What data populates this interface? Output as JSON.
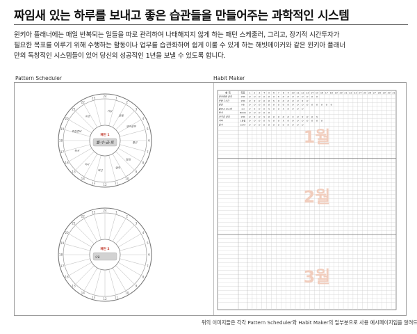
{
  "headline": "짜임새 있는 하루를 보내고 좋은 습관들을 만들어주는 과학적인 시스템",
  "description": [
    "윈키아 플래너에는 매일 반복되는 일들을 따로 관리하여 나태해지지 않게 하는 패턴 스케줄러, 그리고, 장기적 시간투자가",
    "필요한 목표를 이루기 위해 수행하는 활동이나 업무를 습관화하여 쉽게 이룰 수 있게 하는 해빗메이커와 같은 윈키아 플래너",
    "만의 독창적인 시스템들이 있어 당신의 성공적인 1년을 보낼 수 있도록 합니다."
  ],
  "pattern_scheduler": {
    "label": "Pattern Scheduler",
    "dial_numbers": [
      "24",
      "1",
      "2",
      "3",
      "4",
      "5",
      "6",
      "7",
      "8",
      "9",
      "10",
      "11",
      "12",
      "13",
      "14",
      "15",
      "16",
      "17",
      "18",
      "19",
      "20",
      "21",
      "22",
      "23"
    ],
    "pattern1": {
      "tag": "패턴 1",
      "box_text": "월·수·금·토",
      "notes": [
        "기상",
        "운동",
        "영어공부",
        "출근",
        "점심",
        "업무",
        "퇴근",
        "식사",
        "독서",
        "취침준비",
        "수면"
      ]
    },
    "pattern2": {
      "tag": "패턴 2",
      "box_text": "요일"
    }
  },
  "habit_maker": {
    "label": "Habit Maker",
    "header_item": "항 목",
    "header_goal": "목표",
    "day_numbers": [
      "1",
      "2",
      "3",
      "4",
      "5",
      "6",
      "7",
      "8",
      "9",
      "10",
      "11",
      "12",
      "13",
      "14",
      "15",
      "16",
      "17",
      "18",
      "19",
      "20",
      "21",
      "22",
      "23",
      "24",
      "25",
      "26",
      "27",
      "28",
      "29",
      "30",
      "31"
    ],
    "rows": [
      {
        "item": "영어회화 공부",
        "goal": "1HR",
        "marks": "ooooooxoooooooo"
      },
      {
        "item": "운동 1시간",
        "goal": "1HR",
        "marks": "oxoooxoooooxo"
      },
      {
        "item": "금연",
        "goal": "HB",
        "marks": "oooooooooooooooooo"
      },
      {
        "item": "블로그 포스팅",
        "goal": "1/3",
        "marks": "oxooxooxoooo"
      },
      {
        "item": "독서",
        "goal": "BOOK",
        "marks": "ooooo"
      },
      {
        "item": "자격증 공부",
        "goal": "1HR",
        "marks": "oxoxoooooxoxoox"
      },
      {
        "item": "저축",
        "goal": "1만원",
        "marks": "ooooxooxoooooooo"
      },
      {
        "item": "일기",
        "goal": "1DAY",
        "marks": "oooooooooooo"
      }
    ],
    "months": [
      "1월",
      "2월",
      "3월"
    ]
  },
  "caption": "위의 이미지들은 각각 Pattern Scheduler와 Habit Maker의 일부분으로 사용 예시페이지임을 알려드립니다.",
  "colors": {
    "month_label": "#f1cdbd",
    "pattern_tag": "#c0392b",
    "box_fill": "#d2d2d2",
    "grid": "#d0d0d0"
  }
}
